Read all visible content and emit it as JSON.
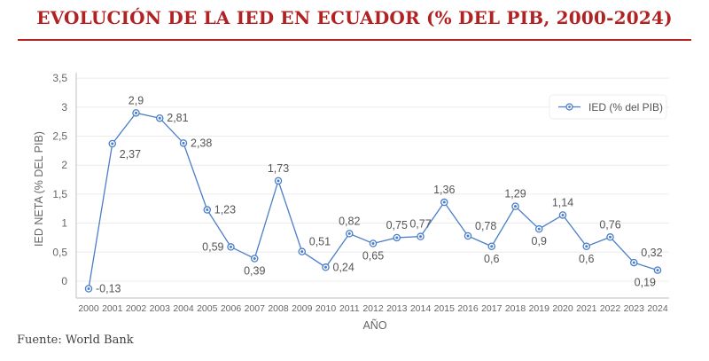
{
  "header": {
    "title": "EVOLUCIÓN DE LA IED EN ECUADOR (% DEL PIB, 2000-2024)"
  },
  "footer": {
    "source": "Fuente: World Bank"
  },
  "colors": {
    "title": "#b22222",
    "series": "#4a7ec9",
    "grid": "#ececec",
    "axis": "#bfbfbf"
  },
  "chart_data": {
    "type": "line",
    "title": "EVOLUCIÓN DE LA IED EN ECUADOR (% DEL PIB, 2000-2024)",
    "xlabel": "AÑO",
    "ylabel": "IED NETA (% DEL PIB)",
    "ylim": [
      -0.29,
      3.5
    ],
    "yticks": [
      0,
      0.5,
      1,
      1.5,
      2,
      2.5,
      3,
      3.5
    ],
    "ytick_labels": [
      "0",
      "0,5",
      "1",
      "1,5",
      "2",
      "2,5",
      "3",
      "3,5"
    ],
    "grid": true,
    "legend_position": "top-right",
    "categories": [
      "2000",
      "2001",
      "2002",
      "2003",
      "2004",
      "2005",
      "2006",
      "2007",
      "2008",
      "2009",
      "2010",
      "2011",
      "2012",
      "2013",
      "2014",
      "2015",
      "2016",
      "2017",
      "2018",
      "2019",
      "2020",
      "2021",
      "2022",
      "2023",
      "2024"
    ],
    "series": [
      {
        "name": "IED (% del PIB)",
        "values": [
          -0.13,
          2.37,
          2.9,
          2.81,
          2.38,
          1.23,
          0.59,
          0.39,
          1.73,
          0.51,
          0.24,
          0.82,
          0.65,
          0.75,
          0.77,
          1.36,
          0.78,
          0.6,
          1.29,
          0.9,
          1.14,
          0.6,
          0.76,
          0.32,
          0.19
        ],
        "labels": [
          "-0,13",
          "2,37",
          "2,9",
          "2,81",
          "2,38",
          "1,23",
          "0,59",
          "0,39",
          "1,73",
          "0,51",
          "0,24",
          "0,82",
          "0,65",
          "0,75",
          "0,77",
          "1,36",
          "0,78",
          "0,6",
          "1,29",
          "0,9",
          "1,14",
          "0,6",
          "0,76",
          "0,32",
          "0,19"
        ],
        "label_positions": [
          "right",
          "below-right",
          "above",
          "right",
          "right",
          "right",
          "left",
          "below",
          "above",
          "above-right",
          "right",
          "above",
          "below",
          "above",
          "above",
          "above",
          "above-right",
          "below",
          "above",
          "below",
          "above",
          "below",
          "above",
          "above-right",
          "below-left"
        ]
      }
    ]
  }
}
